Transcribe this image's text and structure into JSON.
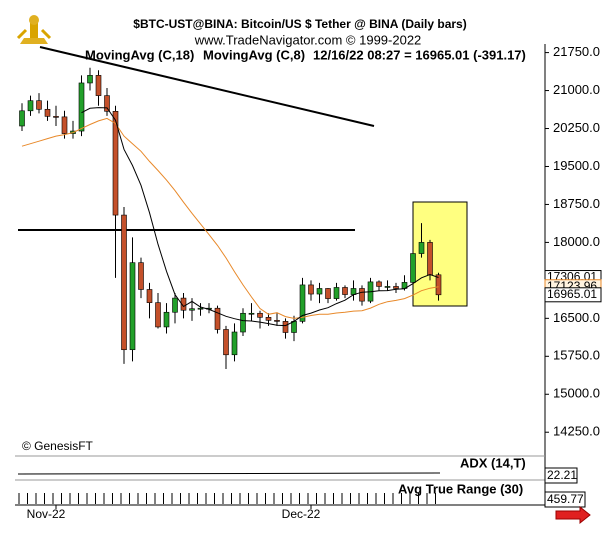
{
  "chart_data": {
    "type": "candlestick",
    "title": "$BTC-UST@BINA:  Bitcoin/US $ Tether @ BINA  (Daily bars)",
    "subtitle": "www.TradeNavigator.com © 1999-2022",
    "status": "12/16/22 08:27 = 16965.01 (-391.17)",
    "watermark": "© GenesisFT",
    "categories": [
      null,
      null,
      null,
      null,
      "Nov-22",
      null,
      null,
      null,
      null,
      null,
      null,
      null,
      null,
      null,
      null,
      null,
      null,
      null,
      null,
      null,
      null,
      null,
      null,
      null,
      null,
      null,
      null,
      null,
      null,
      null,
      null,
      null,
      null,
      null,
      "Dec-22",
      null,
      null,
      null,
      null,
      null,
      null,
      null,
      null,
      null,
      null,
      null,
      null,
      null,
      null,
      null
    ],
    "open": [
      20300,
      20600,
      20800,
      20630,
      20490,
      20480,
      20150,
      20200,
      21150,
      21300,
      20900,
      20590,
      18540,
      15880,
      17600,
      17070,
      16810,
      16330,
      16620,
      16900,
      16660,
      16690,
      16700,
      16700,
      16280,
      15780,
      16230,
      16600,
      16600,
      16520,
      16460,
      16440,
      16220,
      16440,
      17160,
      16980,
      17090,
      16890,
      17110,
      16970,
      17090,
      16840,
      17220,
      17130,
      17130,
      17090,
      17210,
      17780,
      18000,
      17360
    ],
    "high": [
      20750,
      20900,
      20950,
      20800,
      20700,
      20600,
      20400,
      21300,
      21450,
      21400,
      21050,
      20700,
      18700,
      18100,
      17700,
      17200,
      17000,
      16800,
      17000,
      17000,
      16900,
      16800,
      16800,
      16750,
      16350,
      16400,
      16700,
      16800,
      16650,
      16600,
      16600,
      16500,
      16550,
      17300,
      17250,
      17200,
      17100,
      17200,
      17150,
      17250,
      17150,
      17300,
      17250,
      17250,
      17200,
      17350,
      17950,
      18380,
      18050,
      17400
    ],
    "low": [
      20200,
      20500,
      20550,
      20400,
      20300,
      20050,
      20050,
      20100,
      21000,
      20700,
      20500,
      17300,
      15600,
      15650,
      16900,
      16500,
      16300,
      16200,
      16400,
      16500,
      16450,
      16550,
      16600,
      16200,
      15500,
      15650,
      16150,
      16450,
      16300,
      16350,
      16350,
      16100,
      16050,
      16400,
      16850,
      16800,
      16800,
      16850,
      16900,
      16850,
      16750,
      16800,
      17050,
      17050,
      17000,
      17050,
      17150,
      17700,
      17250,
      16850
    ],
    "close": [
      20600,
      20800,
      20630,
      20490,
      20480,
      20150,
      20200,
      21150,
      21300,
      20900,
      20590,
      18540,
      15880,
      17600,
      17070,
      16810,
      16330,
      16620,
      16900,
      16660,
      16690,
      16700,
      16700,
      16280,
      15780,
      16230,
      16600,
      16600,
      16520,
      16460,
      16440,
      16220,
      16440,
      17160,
      16980,
      17090,
      16890,
      17110,
      16970,
      17090,
      16840,
      17220,
      17130,
      17130,
      17090,
      17210,
      17780,
      18000,
      17360,
      16965.01
    ],
    "up_color": "#22a02a",
    "down_color": "#c4502a",
    "series": [
      {
        "name": "MovingAvg (C,18)",
        "color": "#e8892a",
        "values": [
          19900,
          19950,
          20000,
          20050,
          20100,
          20130,
          20170,
          20250,
          20330,
          20400,
          20450,
          20350,
          20100,
          19950,
          19800,
          19600,
          19420,
          19230,
          19024,
          18794,
          18576,
          18365,
          18155,
          17940,
          17694,
          17421,
          17160,
          16921,
          16695,
          16579,
          16611,
          16534,
          16499,
          16519,
          16555,
          16581,
          16581,
          16606,
          16621,
          16643,
          16651,
          16703,
          16778,
          16828,
          16855,
          16889,
          16959,
          17045,
          17096,
          17123.96
        ]
      },
      {
        "name": "MovingAvg (C,8)",
        "color": "#000000",
        "values": [
          null,
          null,
          null,
          null,
          null,
          null,
          null,
          20563,
          20650,
          20663,
          20658,
          20414,
          19839,
          19520,
          19129,
          18586,
          17965,
          17430,
          16969,
          16734,
          16835,
          16723,
          16676,
          16610,
          16541,
          16493,
          16455,
          16448,
          16426,
          16396,
          16364,
          16356,
          16439,
          16555,
          16603,
          16664,
          16710,
          16791,
          16858,
          16966,
          17016,
          17024,
          17043,
          17048,
          17073,
          17085,
          17186,
          17300,
          17365,
          17306.01
        ]
      }
    ],
    "ylim": [
      13800,
      21900
    ],
    "yticks": [
      {
        "value": 21750,
        "label": "21750.0"
      },
      {
        "value": 21000,
        "label": "21000.0"
      },
      {
        "value": 20250,
        "label": "20250.0"
      },
      {
        "value": 19500,
        "label": "19500.0"
      },
      {
        "value": 18750,
        "label": "18750.0"
      },
      {
        "value": 18000,
        "label": "18000.0"
      },
      {
        "value": 17250,
        "label": "17250.0"
      },
      {
        "value": 16500,
        "label": "16500.0"
      },
      {
        "value": 15750,
        "label": "15750.0"
      },
      {
        "value": 15000,
        "label": "15000.0"
      },
      {
        "value": 14250,
        "label": "14250.0"
      }
    ],
    "indicators": [
      {
        "name": "ADX (14,T)",
        "last": 22.21
      },
      {
        "name": "Avg True Range (30)",
        "last": 459.77
      }
    ]
  }
}
